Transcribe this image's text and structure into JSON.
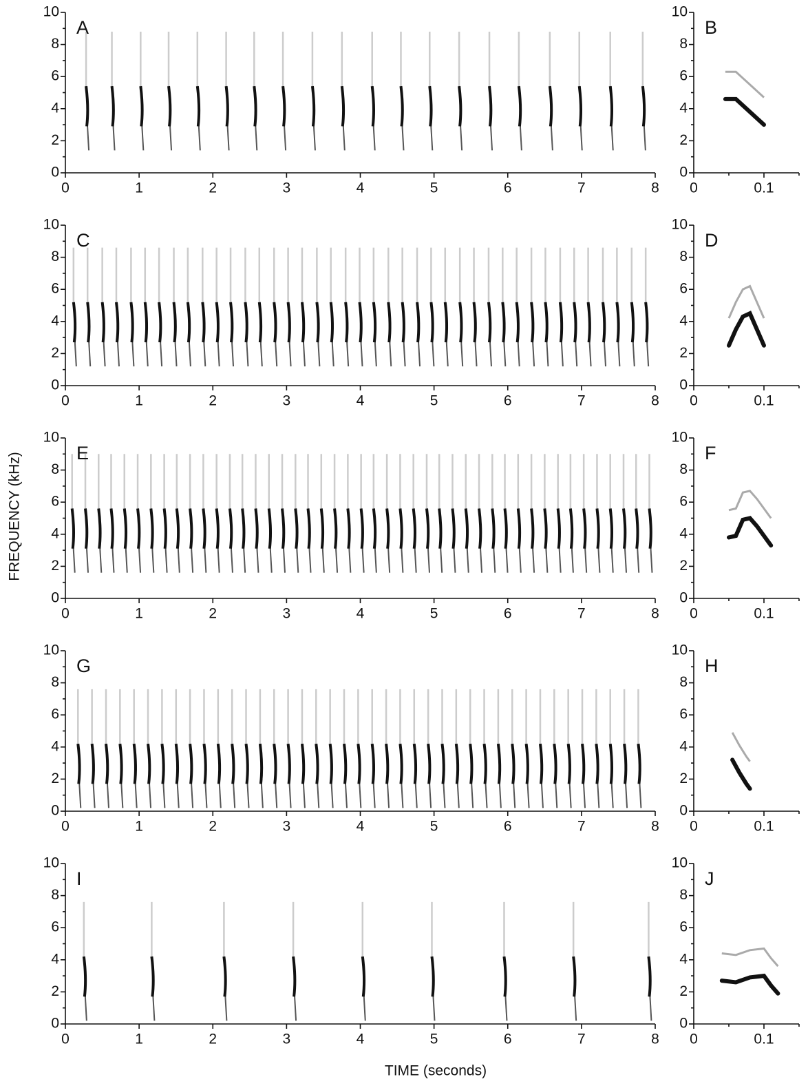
{
  "axis_labels": {
    "y": "FREQUENCY (kHz)",
    "x": "TIME (seconds)"
  },
  "chart_data": [
    {
      "type": "spectrogram",
      "label": "A",
      "xlim": [
        0,
        8
      ],
      "ylim": [
        0,
        10
      ],
      "xticks": [
        0,
        1,
        2,
        3,
        4,
        5,
        6,
        7,
        8
      ],
      "yticks": [
        0,
        2,
        4,
        6,
        8,
        10
      ],
      "minor_yticks": [
        1,
        3,
        5,
        7,
        9
      ],
      "x": [
        0.29,
        0.64,
        1.03,
        1.41,
        1.8,
        2.19,
        2.57,
        2.96,
        3.36,
        3.76,
        4.17,
        4.56,
        4.95,
        5.35,
        5.76,
        6.16,
        6.58,
        6.98,
        7.4,
        7.84
      ],
      "values": [
        4,
        4,
        4,
        4,
        4,
        4,
        4,
        4,
        4,
        4,
        4,
        4,
        4,
        4,
        4,
        4,
        4,
        4,
        4,
        4
      ]
    },
    {
      "type": "contour",
      "label": "B",
      "xlim": [
        0,
        0.15
      ],
      "ylim": [
        0,
        10
      ],
      "xticks": [
        0,
        0.1
      ],
      "minor_xticks": [
        0.05,
        0.15
      ],
      "yticks": [
        0,
        2,
        4,
        6,
        8,
        10
      ],
      "minor_yticks": [
        1,
        3,
        5,
        7,
        9
      ],
      "x": [
        0.045,
        0.06,
        0.075,
        0.09,
        0.1
      ],
      "values": [
        4.6,
        4.6,
        4.0,
        3.4,
        3.0
      ]
    },
    {
      "type": "spectrogram",
      "label": "C",
      "xlim": [
        0,
        8
      ],
      "ylim": [
        0,
        10
      ],
      "xticks": [
        0,
        1,
        2,
        3,
        4,
        5,
        6,
        7,
        8
      ],
      "yticks": [
        0,
        2,
        4,
        6,
        8,
        10
      ],
      "minor_yticks": [
        1,
        3,
        5,
        7,
        9
      ],
      "x": [
        0.12,
        0.31,
        0.51,
        0.7,
        0.9,
        1.09,
        1.28,
        1.48,
        1.67,
        1.87,
        2.06,
        2.25,
        2.45,
        2.64,
        2.84,
        3.03,
        3.22,
        3.42,
        3.61,
        3.81,
        4.0,
        4.19,
        4.39,
        4.58,
        4.78,
        4.97,
        5.16,
        5.36,
        5.55,
        5.75,
        5.94,
        6.13,
        6.33,
        6.52,
        6.72,
        6.91,
        7.1,
        7.3,
        7.49,
        7.69,
        7.88
      ],
      "values": [
        3.8,
        3.8,
        3.8,
        3.8,
        3.8,
        3.8,
        3.8,
        3.8,
        3.8,
        3.8,
        3.8,
        3.8,
        3.8,
        3.8,
        3.8,
        3.8,
        3.8,
        3.8,
        3.8,
        3.8,
        3.8,
        3.8,
        3.8,
        3.8,
        3.8,
        3.8,
        3.8,
        3.8,
        3.8,
        3.8,
        3.8,
        3.8,
        3.8,
        3.8,
        3.8,
        3.8,
        3.8,
        3.8,
        3.8,
        3.8,
        3.8
      ]
    },
    {
      "type": "contour",
      "label": "D",
      "xlim": [
        0,
        0.15
      ],
      "ylim": [
        0,
        10
      ],
      "xticks": [
        0,
        0.1
      ],
      "minor_xticks": [
        0.05,
        0.15
      ],
      "yticks": [
        0,
        2,
        4,
        6,
        8,
        10
      ],
      "minor_yticks": [
        1,
        3,
        5,
        7,
        9
      ],
      "x": [
        0.05,
        0.06,
        0.07,
        0.08,
        0.09,
        0.1
      ],
      "values": [
        2.5,
        3.5,
        4.3,
        4.5,
        3.5,
        2.5
      ]
    },
    {
      "type": "spectrogram",
      "label": "E",
      "xlim": [
        0,
        8
      ],
      "ylim": [
        0,
        10
      ],
      "xticks": [
        0,
        1,
        2,
        3,
        4,
        5,
        6,
        7,
        8
      ],
      "yticks": [
        0,
        2,
        4,
        6,
        8,
        10
      ],
      "minor_yticks": [
        1,
        3,
        5,
        7,
        9
      ],
      "x": [
        0.1,
        0.28,
        0.46,
        0.63,
        0.81,
        0.99,
        1.17,
        1.35,
        1.52,
        1.7,
        1.88,
        2.06,
        2.24,
        2.41,
        2.59,
        2.77,
        2.95,
        3.13,
        3.3,
        3.48,
        3.66,
        3.84,
        4.02,
        4.19,
        4.37,
        4.55,
        4.73,
        4.91,
        5.08,
        5.26,
        5.44,
        5.62,
        5.8,
        5.97,
        6.15,
        6.33,
        6.51,
        6.69,
        6.86,
        7.04,
        7.22,
        7.4,
        7.58,
        7.75,
        7.93
      ],
      "values": [
        4.2,
        4.2,
        4.2,
        4.2,
        4.2,
        4.2,
        4.2,
        4.2,
        4.2,
        4.2,
        4.2,
        4.2,
        4.2,
        4.2,
        4.2,
        4.2,
        4.2,
        4.2,
        4.2,
        4.2,
        4.2,
        4.2,
        4.2,
        4.2,
        4.2,
        4.2,
        4.2,
        4.2,
        4.2,
        4.2,
        4.2,
        4.2,
        4.2,
        4.2,
        4.2,
        4.2,
        4.2,
        4.2,
        4.2,
        4.2,
        4.2,
        4.2,
        4.2,
        4.2,
        4.2
      ]
    },
    {
      "type": "contour",
      "label": "F",
      "xlim": [
        0,
        0.15
      ],
      "ylim": [
        0,
        10
      ],
      "xticks": [
        0,
        0.1
      ],
      "minor_xticks": [
        0.05,
        0.15
      ],
      "yticks": [
        0,
        2,
        4,
        6,
        8,
        10
      ],
      "minor_yticks": [
        1,
        3,
        5,
        7,
        9
      ],
      "x": [
        0.05,
        0.06,
        0.07,
        0.08,
        0.09,
        0.1,
        0.11
      ],
      "values": [
        3.8,
        3.9,
        4.9,
        5.0,
        4.5,
        3.9,
        3.3
      ]
    },
    {
      "type": "spectrogram",
      "label": "G",
      "xlim": [
        0,
        8
      ],
      "ylim": [
        0,
        10
      ],
      "xticks": [
        0,
        1,
        2,
        3,
        4,
        5,
        6,
        7,
        8
      ],
      "yticks": [
        0,
        2,
        4,
        6,
        8,
        10
      ],
      "minor_yticks": [
        1,
        3,
        5,
        7,
        9
      ],
      "x": [
        0.18,
        0.37,
        0.56,
        0.75,
        0.94,
        1.13,
        1.32,
        1.51,
        1.7,
        1.89,
        2.08,
        2.27,
        2.46,
        2.65,
        2.84,
        3.03,
        3.22,
        3.41,
        3.6,
        3.79,
        3.98,
        4.17,
        4.36,
        4.55,
        4.74,
        4.93,
        5.12,
        5.31,
        5.5,
        5.69,
        5.88,
        6.07,
        6.26,
        6.45,
        6.64,
        6.83,
        7.02,
        7.21,
        7.4,
        7.59,
        7.78
      ],
      "values": [
        2.8,
        2.8,
        2.8,
        2.8,
        2.8,
        2.8,
        2.8,
        2.8,
        2.8,
        2.8,
        2.8,
        2.8,
        2.8,
        2.8,
        2.8,
        2.8,
        2.8,
        2.8,
        2.8,
        2.8,
        2.8,
        2.8,
        2.8,
        2.8,
        2.8,
        2.8,
        2.8,
        2.8,
        2.8,
        2.8,
        2.8,
        2.8,
        2.8,
        2.8,
        2.8,
        2.8,
        2.8,
        2.8,
        2.8,
        2.8,
        2.8
      ]
    },
    {
      "type": "contour",
      "label": "H",
      "xlim": [
        0,
        0.15
      ],
      "ylim": [
        0,
        10
      ],
      "xticks": [
        0,
        0.1
      ],
      "minor_xticks": [
        0.05,
        0.15
      ],
      "yticks": [
        0,
        2,
        4,
        6,
        8,
        10
      ],
      "minor_yticks": [
        1,
        3,
        5,
        7,
        9
      ],
      "x": [
        0.055,
        0.065,
        0.075,
        0.08
      ],
      "values": [
        3.2,
        2.4,
        1.7,
        1.4
      ]
    },
    {
      "type": "spectrogram",
      "label": "I",
      "xlim": [
        0,
        8
      ],
      "ylim": [
        0,
        10
      ],
      "xticks": [
        0,
        1,
        2,
        3,
        4,
        5,
        6,
        7,
        8
      ],
      "yticks": [
        0,
        2,
        4,
        6,
        8,
        10
      ],
      "minor_yticks": [
        1,
        3,
        5,
        7,
        9
      ],
      "x": [
        0.26,
        1.18,
        2.16,
        3.1,
        4.04,
        4.98,
        5.96,
        6.9,
        7.92
      ],
      "values": [
        2.8,
        2.8,
        2.8,
        2.8,
        2.8,
        2.8,
        2.8,
        2.8,
        2.8
      ]
    },
    {
      "type": "contour",
      "label": "J",
      "xlim": [
        0,
        0.15
      ],
      "ylim": [
        0,
        10
      ],
      "xticks": [
        0,
        0.1
      ],
      "minor_xticks": [
        0.05,
        0.15
      ],
      "yticks": [
        0,
        2,
        4,
        6,
        8,
        10
      ],
      "minor_yticks": [
        1,
        3,
        5,
        7,
        9
      ],
      "x": [
        0.04,
        0.06,
        0.08,
        0.1,
        0.11,
        0.12
      ],
      "values": [
        2.7,
        2.6,
        2.9,
        3.0,
        2.4,
        1.9
      ]
    }
  ]
}
